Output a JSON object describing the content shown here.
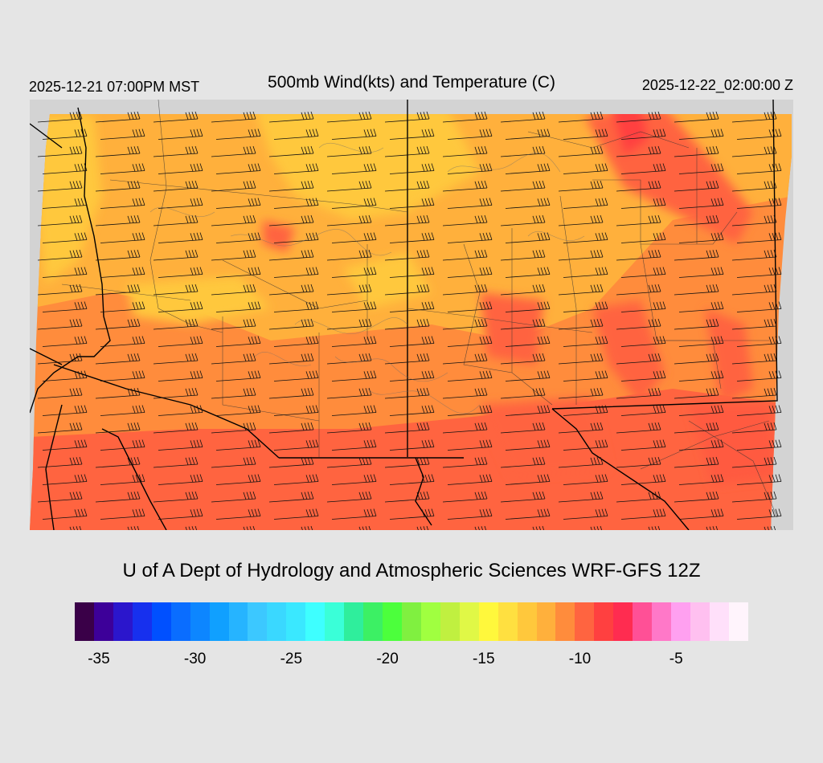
{
  "header": {
    "local_time": "2025-12-21 07:00PM MST",
    "title": "500mb Wind(kts) and Temperature (C)",
    "utc_time": "2025-12-22_02:00:00 Z"
  },
  "footer": {
    "credit": "U of A Dept of Hydrology and Atmospheric Sciences WRF-GFS 12Z"
  },
  "colorbar": {
    "colors": [
      "#3a0048",
      "#3d0099",
      "#2b16cc",
      "#1730ee",
      "#0050ff",
      "#0a6dff",
      "#0d86ff",
      "#10a0ff",
      "#26b4ff",
      "#3cc8ff",
      "#3ad8ff",
      "#3ae8ff",
      "#3effff",
      "#3affd8",
      "#2fee9c",
      "#3cf064",
      "#4cff3c",
      "#80f040",
      "#a0ff40",
      "#c0f040",
      "#e0f846",
      "#fff83c",
      "#ffe040",
      "#ffc83c",
      "#ffb03c",
      "#ff8c3c",
      "#ff6440",
      "#ff4040",
      "#ff2c50",
      "#ff5096",
      "#ff78c8",
      "#ffa0f0",
      "#ffc0f0",
      "#ffe0fa",
      "#fff4fc"
    ],
    "tick_labels": [
      {
        "label": "-35",
        "value": -35
      },
      {
        "label": "-30",
        "value": -30
      },
      {
        "label": "-25",
        "value": -25
      },
      {
        "label": "-20",
        "value": -20
      },
      {
        "label": "-15",
        "value": -15
      },
      {
        "label": "-10",
        "value": -10
      },
      {
        "label": "-5",
        "value": -5
      }
    ]
  },
  "map": {
    "fill_colors": {
      "yellow": "#ffc83c",
      "light_orange": "#ffb03c",
      "orange": "#ff8c3c",
      "red_orange": "#ff6440",
      "red": "#ff4040",
      "background": "#d3d3d3",
      "page": "#e5e5e5"
    }
  }
}
